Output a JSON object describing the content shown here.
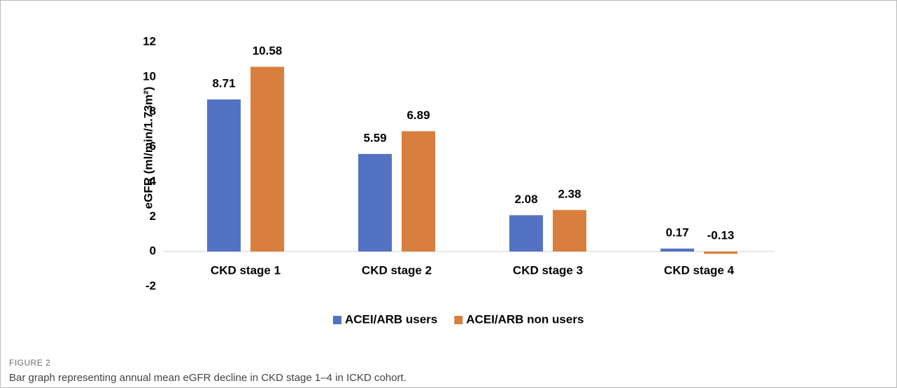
{
  "chart_data": {
    "type": "bar",
    "figure_label": "FIGURE 2",
    "caption": "Bar graph representing annual mean eGFR decline in CKD stage 1–4 in ICKD cohort.",
    "y_label": "eGFR (ml/min/1.73m²)",
    "categories": [
      "CKD stage 1",
      "CKD stage 2",
      "CKD stage 3",
      "CKD stage 4"
    ],
    "series": [
      {
        "name": "ACEI/ARB users",
        "color": "#5472c4",
        "values": [
          8.71,
          5.59,
          2.08,
          0.17
        ]
      },
      {
        "name": "ACEI/ARB non users",
        "color": "#d97f3d",
        "values": [
          10.58,
          6.89,
          2.38,
          -0.13
        ]
      }
    ],
    "ylim": [
      -2,
      12
    ],
    "yticks": [
      -2,
      0,
      2,
      4,
      6,
      8,
      10,
      12
    ],
    "grid": false,
    "legend": "bottom"
  }
}
